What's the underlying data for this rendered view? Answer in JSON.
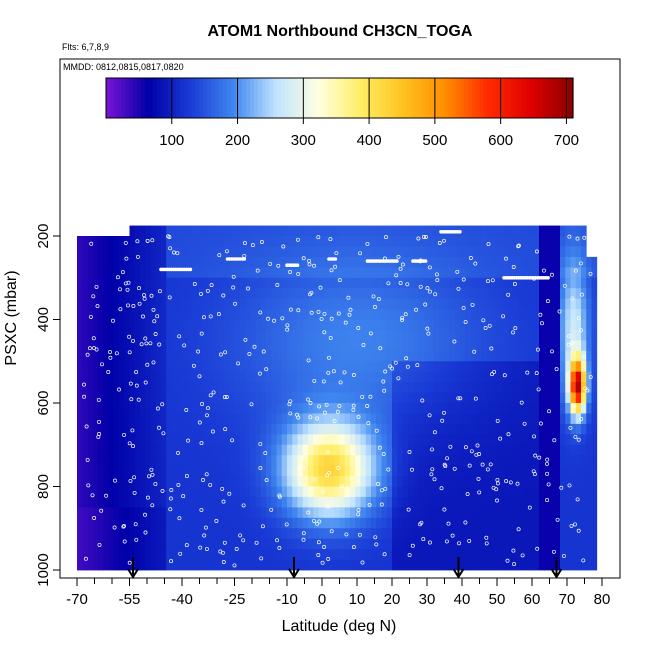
{
  "chart_data": {
    "type": "heatmap",
    "title": "ATOM1 Northbound CH3CN_TOGA",
    "subtitle_flights": "Flts: 6,7,8,9",
    "subtitle_dates": "MMDD: 0812,0815,0817,0820",
    "xlabel": "Latitude (deg N)",
    "ylabel": "PSXC (mbar)",
    "xlim": [
      -70,
      80
    ],
    "ylim": [
      1000,
      150
    ],
    "x_tick_labels": [
      "-70",
      "-55",
      "-40",
      "-25",
      "-10",
      "0",
      "10",
      "20",
      "30",
      "40",
      "50",
      "60",
      "70",
      "80"
    ],
    "x_tick_values": [
      -70,
      -55,
      -40,
      -25,
      -10,
      0,
      10,
      20,
      30,
      40,
      50,
      60,
      70,
      80
    ],
    "y_tick_labels": [
      "200",
      "400",
      "600",
      "800",
      "1000"
    ],
    "y_tick_values": [
      200,
      400,
      600,
      800,
      1000
    ],
    "colorbar": {
      "range": [
        0,
        710
      ],
      "tick_labels": [
        "100",
        "200",
        "300",
        "400",
        "500",
        "600",
        "700"
      ],
      "tick_values": [
        100,
        200,
        300,
        400,
        500,
        600,
        700
      ],
      "colors": [
        "#7b14d6",
        "#0000a8",
        "#1a3cd6",
        "#3f86ef",
        "#bfe3ff",
        "#ffffe0",
        "#ffee66",
        "#ffc21f",
        "#ff8c00",
        "#ff2a00",
        "#e00000",
        "#8a0000"
      ]
    },
    "arrow_latitudes": [
      -54,
      -8,
      39,
      67
    ],
    "sample_profiles": [
      {
        "lat": -67,
        "p": 180,
        "v": 150
      },
      {
        "lat": -60,
        "p": 800,
        "v": 60
      },
      {
        "lat": 0,
        "p": 720,
        "v": 400
      },
      {
        "lat": 5,
        "p": 850,
        "v": 430
      },
      {
        "lat": 72,
        "p": 560,
        "v": 640
      },
      {
        "lat": 73,
        "p": 600,
        "v": 600
      }
    ]
  }
}
